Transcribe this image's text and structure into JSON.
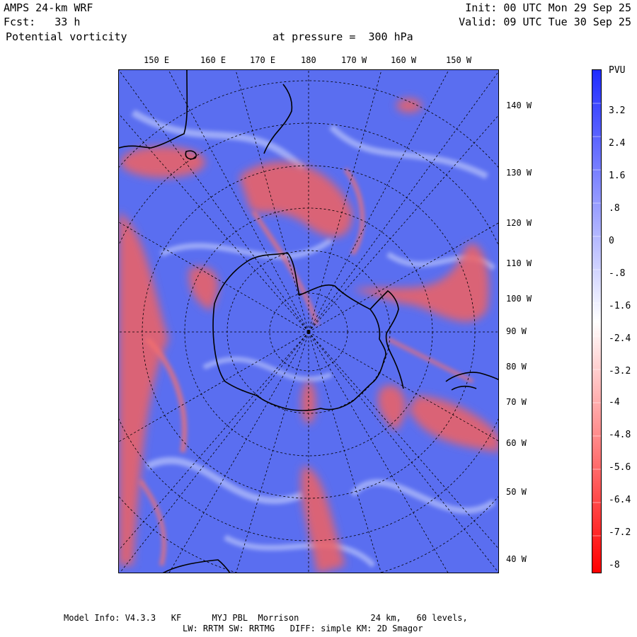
{
  "header": {
    "model": "AMPS 24-km WRF",
    "fcst": "Fcst:   33 h",
    "field": "Potential vorticity",
    "level": "at pressure =  300 hPa",
    "init": "Init: 00 UTC Mon 29 Sep 25",
    "valid": "Valid: 09 UTC Tue 30 Sep 25"
  },
  "top_lon_labels": [
    "150 E",
    "160 E",
    "170 E",
    "180",
    "170 W",
    "160 W",
    "150 W"
  ],
  "right_lon_labels": [
    "140 W",
    "130 W",
    "120 W",
    "110 W",
    "100 W",
    "90 W",
    "80 W",
    "70 W",
    "60 W",
    "50 W",
    "40 W"
  ],
  "colorbar": {
    "unit": "PVU",
    "labels": [
      "3.2",
      "2.4",
      "1.6",
      ".8",
      "0",
      "-.8",
      "-1.6",
      "-2.4",
      "-3.2",
      "-4",
      "-4.8",
      "-5.6",
      "-6.4",
      "-7.2",
      "-8"
    ],
    "colors": {
      "high": "#1f2bff",
      "mid": "#ffffff",
      "low": "#ff0000"
    }
  },
  "map_colors": {
    "positive_background": "#5a6ef0",
    "negative_feature": "#f06060",
    "coast": "#000000"
  },
  "footer": {
    "line1": "Model Info: V4.3.3   KF      MYJ PBL  Morrison              24 km,   60 levels,",
    "line2": "LW: RRTM SW: RRTMG   DIFF: simple KM: 2D Smagor"
  }
}
